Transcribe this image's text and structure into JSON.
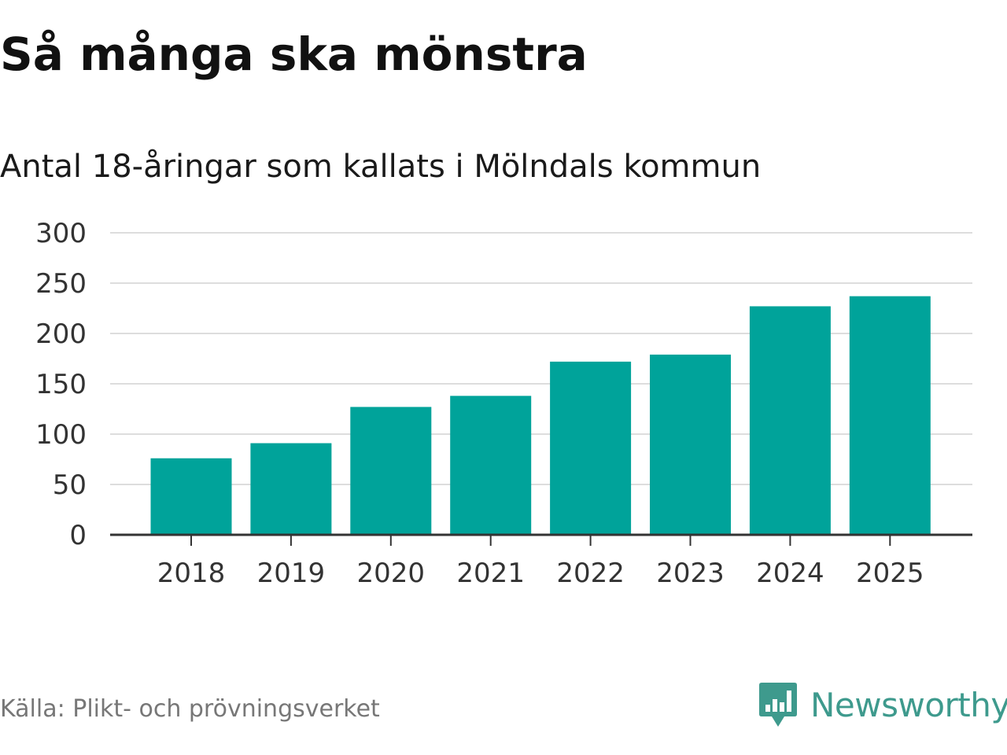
{
  "chart_data": {
    "type": "bar",
    "title": "Så många ska mönstra",
    "subtitle": "Antal 18-åringar som kallats i Mölndals kommun",
    "categories": [
      "2018",
      "2019",
      "2020",
      "2021",
      "2022",
      "2023",
      "2024",
      "2025"
    ],
    "values": [
      76,
      91,
      127,
      138,
      172,
      179,
      227,
      237
    ],
    "yticks": [
      "0",
      "50",
      "100",
      "150",
      "200",
      "250",
      "300"
    ],
    "ylim": [
      0,
      300
    ],
    "xlabel": "",
    "ylabel": "",
    "grid": true,
    "bar_color": "#00a39a",
    "grid_color": "#dddddd",
    "axis_color": "#333333"
  },
  "footer": {
    "source": "Källa: Plikt- och prövningsverket",
    "brand": "Newsworthy",
    "brand_color": "#3e9a8d",
    "brand_icon": "newsworthy-logo-icon"
  }
}
